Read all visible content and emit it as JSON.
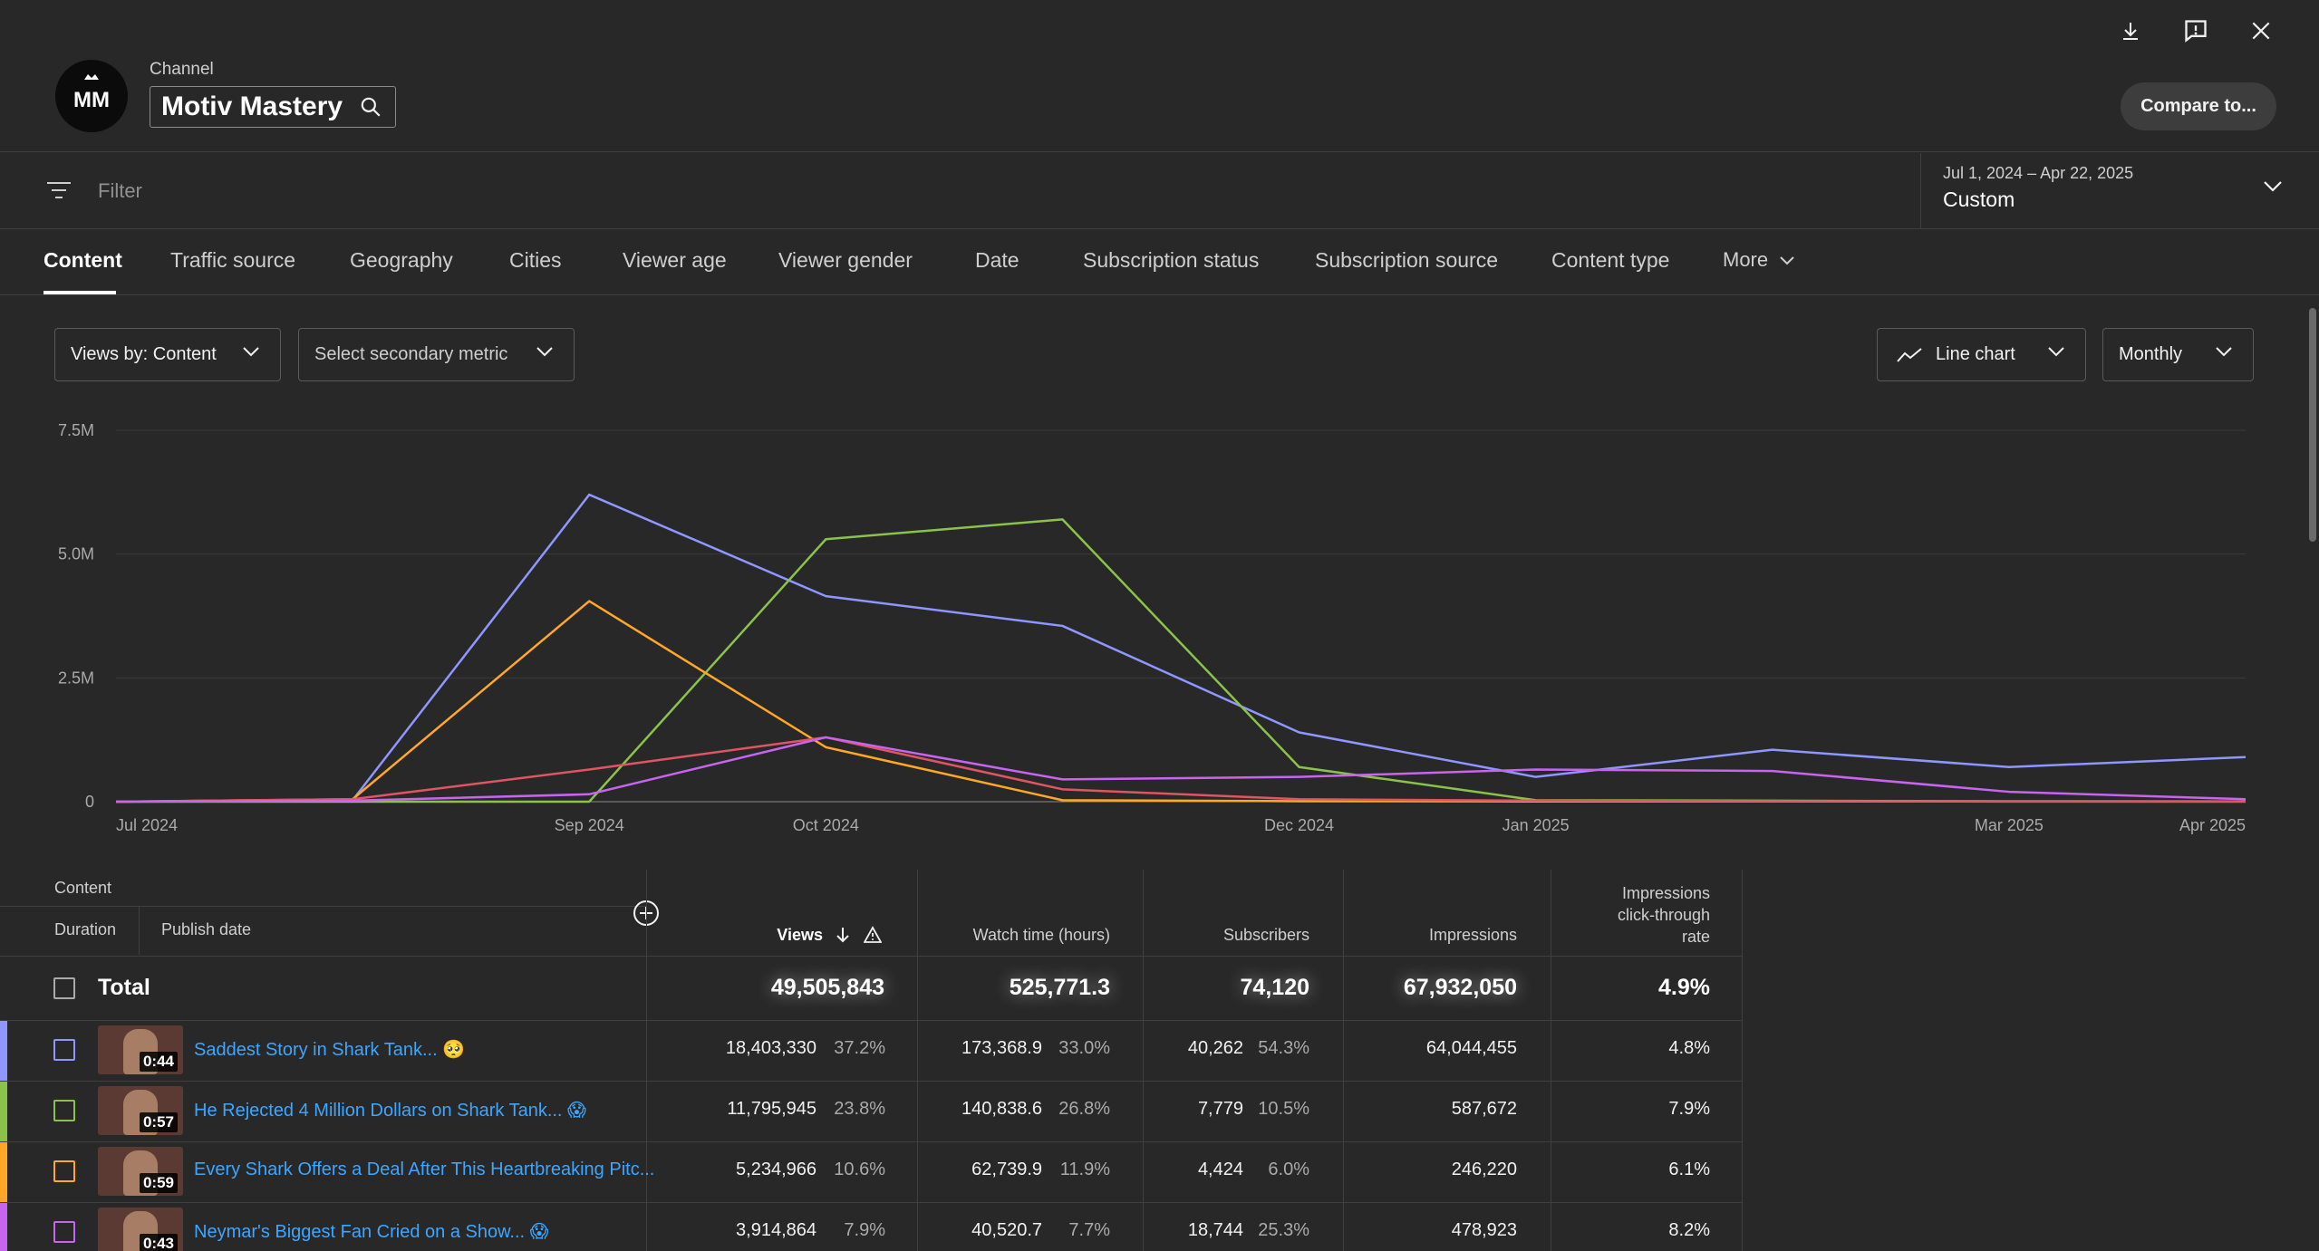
{
  "channel": {
    "label": "Channel",
    "name": "Motiv Mastery",
    "avatar_text": "MM"
  },
  "header": {
    "compare_label": "Compare to..."
  },
  "filter": {
    "placeholder": "Filter"
  },
  "date_range": {
    "range": "Jul 1, 2024 – Apr 22, 2025",
    "preset": "Custom"
  },
  "tabs": [
    {
      "label": "Content"
    },
    {
      "label": "Traffic source"
    },
    {
      "label": "Geography"
    },
    {
      "label": "Cities"
    },
    {
      "label": "Viewer age"
    },
    {
      "label": "Viewer gender"
    },
    {
      "label": "Date"
    },
    {
      "label": "Subscription status"
    },
    {
      "label": "Subscription source"
    },
    {
      "label": "Content type"
    },
    {
      "label": "More"
    }
  ],
  "controls": {
    "primary_metric": "Views by: Content",
    "secondary_metric": "Select secondary metric",
    "chart_type": "Line chart",
    "interval": "Monthly"
  },
  "chart_data": {
    "type": "line",
    "y_ticks": [
      "7.5M",
      "5.0M",
      "2.5M",
      "0"
    ],
    "x_ticks": [
      "Jul 2024",
      "Sep 2024",
      "Oct 2024",
      "Dec 2024",
      "Jan 2025",
      "Mar 2025",
      "Apr 2025"
    ],
    "ylim": [
      0,
      7500000
    ],
    "grid": true,
    "legend": "none",
    "x": [
      "2024-07",
      "2024-08",
      "2024-09",
      "2024-10",
      "2024-11",
      "2024-12",
      "2025-01",
      "2025-02",
      "2025-03",
      "2025-04"
    ],
    "series": [
      {
        "color": "#8f96ff",
        "values": [
          0,
          30000,
          6200000,
          4150000,
          3550000,
          1400000,
          500000,
          1050000,
          700000,
          900000
        ]
      },
      {
        "color": "#8bc34a",
        "values": [
          0,
          0,
          0,
          5300000,
          5700000,
          700000,
          30000,
          20000,
          10000,
          5000
        ]
      },
      {
        "color": "#ffa726",
        "values": [
          0,
          50000,
          4050000,
          1100000,
          30000,
          10000,
          5000,
          5000,
          3000,
          2000
        ]
      },
      {
        "color": "#e05563",
        "values": [
          0,
          50000,
          650000,
          1300000,
          250000,
          50000,
          20000,
          10000,
          5000,
          2000
        ]
      },
      {
        "color": "#c765f0",
        "values": [
          0,
          20000,
          150000,
          1300000,
          450000,
          500000,
          650000,
          620000,
          200000,
          50000
        ]
      }
    ]
  },
  "table": {
    "col_content": "Content",
    "col_duration": "Duration",
    "col_publish": "Publish date",
    "col_views": "Views",
    "col_watch": "Watch time (hours)",
    "col_subs": "Subscribers",
    "col_impr": "Impressions",
    "col_ctr_1": "Impressions",
    "col_ctr_2": "click-through",
    "col_ctr_3": "rate",
    "total": {
      "label": "Total",
      "views": "49,505,843",
      "watch": "525,771.3",
      "subs": "74,120",
      "impr": "67,932,050",
      "ctr": "4.9%"
    },
    "rows": [
      {
        "color": "#8f96ff",
        "duration": "0:44",
        "title": "Saddest Story in Shark Tank... 🥺",
        "views": "18,403,330",
        "views_pct": "37.2%",
        "watch": "173,368.9",
        "watch_pct": "33.0%",
        "subs": "40,262",
        "subs_pct": "54.3%",
        "impr": "64,044,455",
        "ctr": "4.8%"
      },
      {
        "color": "#8bc34a",
        "duration": "0:57",
        "title": "He Rejected 4 Million Dollars on Shark Tank... 😱",
        "views": "11,795,945",
        "views_pct": "23.8%",
        "watch": "140,838.6",
        "watch_pct": "26.8%",
        "subs": "7,779",
        "subs_pct": "10.5%",
        "impr": "587,672",
        "ctr": "7.9%"
      },
      {
        "color": "#ffa726",
        "duration": "0:59",
        "title": "Every Shark Offers a Deal After This Heartbreaking Pitc...",
        "views": "5,234,966",
        "views_pct": "10.6%",
        "watch": "62,739.9",
        "watch_pct": "11.9%",
        "subs": "4,424",
        "subs_pct": "6.0%",
        "impr": "246,220",
        "ctr": "6.1%"
      },
      {
        "color": "#c765f0",
        "duration": "0:43",
        "title": "Neymar's Biggest Fan Cried on a Show... 😱",
        "views": "3,914,864",
        "views_pct": "7.9%",
        "watch": "40,520.7",
        "watch_pct": "7.7%",
        "subs": "18,744",
        "subs_pct": "25.3%",
        "impr": "478,923",
        "ctr": "8.2%"
      }
    ]
  }
}
